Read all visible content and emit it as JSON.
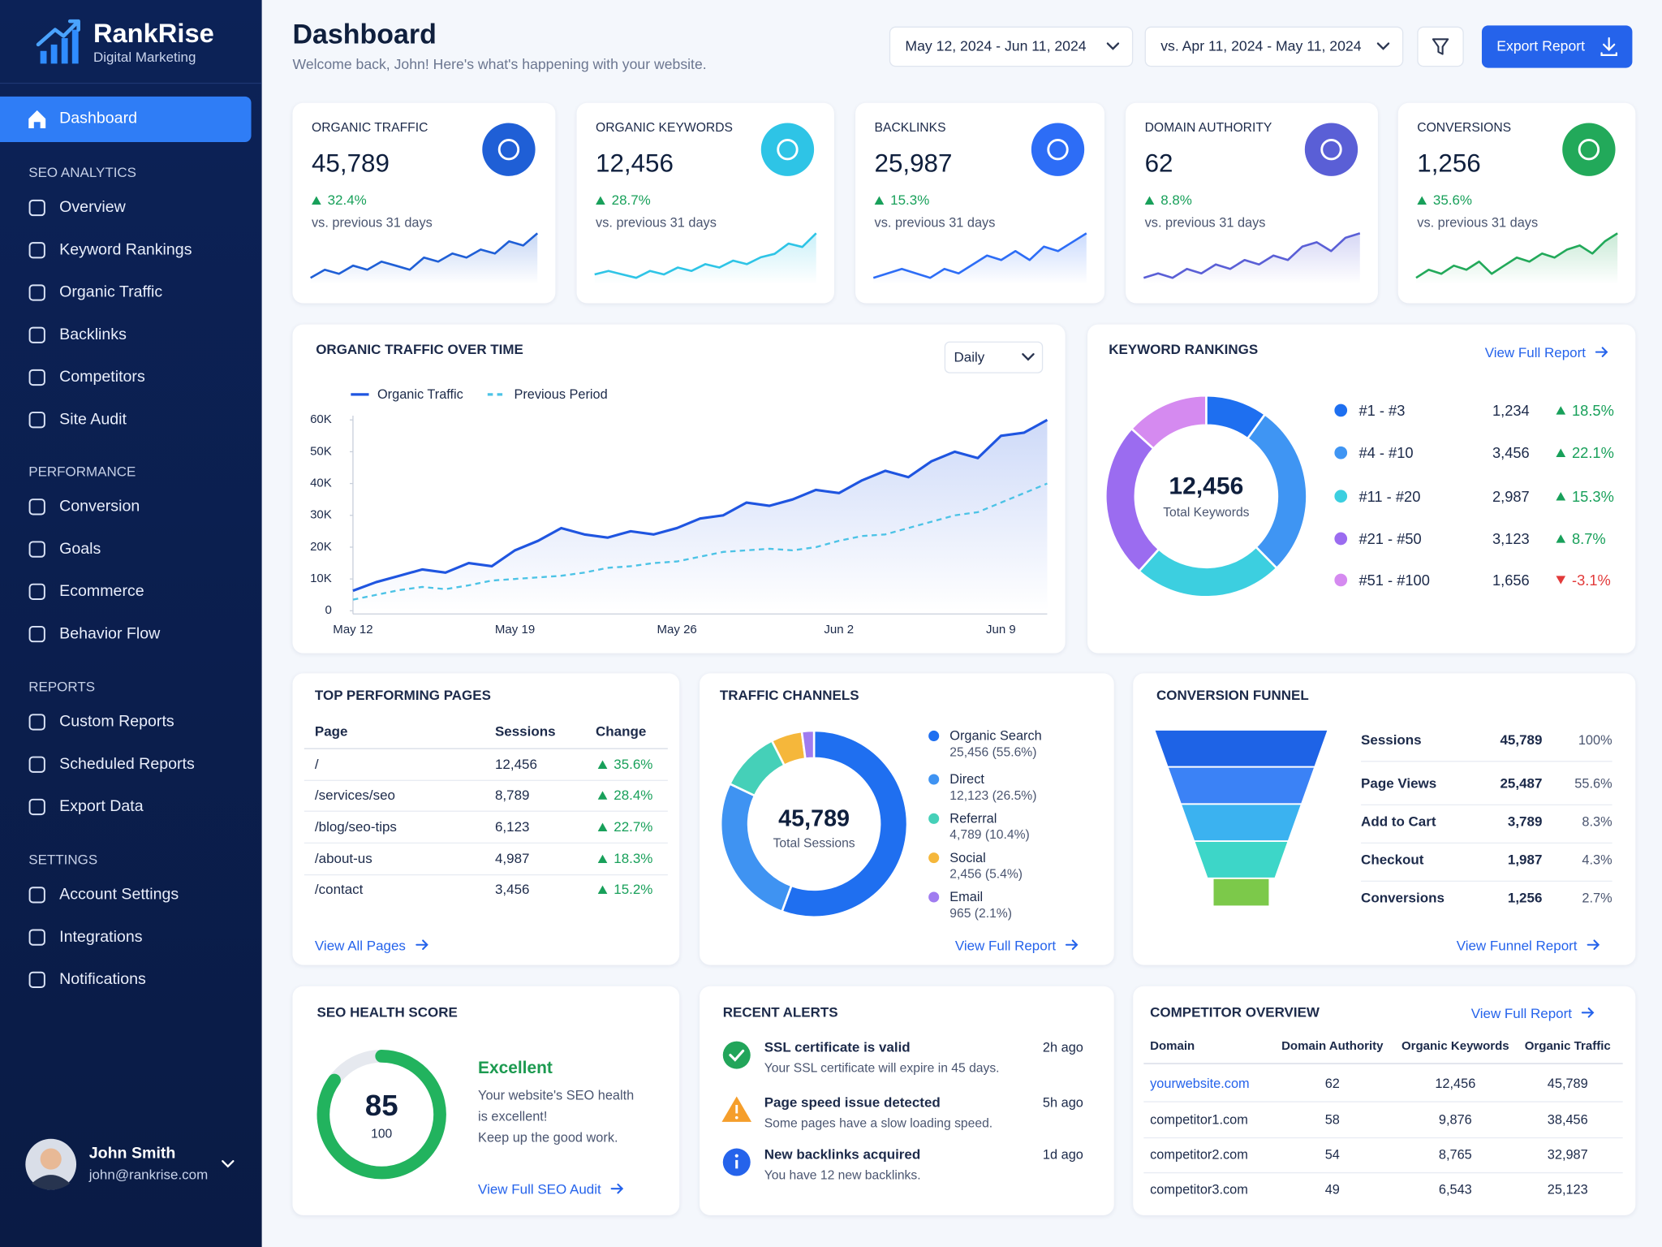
{
  "brand": {
    "name": "RankRise",
    "tagline": "Digital Marketing"
  },
  "nav": {
    "active": "Dashboard",
    "sections": [
      {
        "title": "SEO ANALYTICS",
        "items": [
          "Overview",
          "Keyword Rankings",
          "Organic Traffic",
          "Backlinks",
          "Competitors",
          "Site Audit"
        ]
      },
      {
        "title": "PERFORMANCE",
        "items": [
          "Conversion",
          "Goals",
          "Ecommerce",
          "Behavior Flow"
        ]
      },
      {
        "title": "REPORTS",
        "items": [
          "Custom Reports",
          "Scheduled Reports",
          "Export Data"
        ]
      },
      {
        "title": "SETTINGS",
        "items": [
          "Account Settings",
          "Integrations",
          "Notifications"
        ]
      }
    ]
  },
  "user": {
    "name": "John Smith",
    "email": "john@rankrise.com"
  },
  "header": {
    "title": "Dashboard",
    "subtitle": "Welcome back, John! Here's what's happening with your website.",
    "date_range": "May 12, 2024 - Jun 11, 2024",
    "compare_range": "vs. Apr 11, 2024 - May 11, 2024",
    "export": "Export Report"
  },
  "kpis": [
    {
      "label": "ORGANIC TRAFFIC",
      "value": "45,789",
      "change": "32.4%",
      "note": "vs. previous 31 days",
      "color": "#1f5fd6",
      "trend": [
        3,
        5,
        4,
        6,
        5,
        7,
        6,
        5,
        8,
        7,
        9,
        8,
        10,
        9,
        12,
        11,
        14
      ]
    },
    {
      "label": "ORGANIC KEYWORDS",
      "value": "12,456",
      "change": "28.7%",
      "note": "vs. previous 31 days",
      "color": "#2ec4e6",
      "trend": [
        5,
        6,
        5,
        4,
        6,
        5,
        7,
        6,
        8,
        7,
        9,
        8,
        10,
        11,
        14,
        13,
        17
      ]
    },
    {
      "label": "BACKLINKS",
      "value": "25,987",
      "change": "15.3%",
      "note": "vs. previous 31 days",
      "color": "#2d6df6",
      "trend": [
        4,
        5,
        6,
        5,
        4,
        6,
        5,
        7,
        9,
        8,
        10,
        8,
        11,
        10,
        12,
        14
      ]
    },
    {
      "label": "DOMAIN AUTHORITY",
      "value": "62",
      "change": "8.8%",
      "note": "vs. previous 31 days",
      "color": "#5a5fd6",
      "trend": [
        3,
        4,
        3,
        5,
        4,
        6,
        5,
        7,
        6,
        8,
        7,
        10,
        11,
        9,
        12,
        13
      ]
    },
    {
      "label": "CONVERSIONS",
      "value": "1,256",
      "change": "35.6%",
      "note": "vs. previous 31 days",
      "color": "#22a95a",
      "trend": [
        4,
        6,
        5,
        7,
        6,
        8,
        5,
        7,
        9,
        8,
        10,
        9,
        11,
        12,
        10,
        13,
        15
      ]
    }
  ],
  "traffic_chart": {
    "type": "line",
    "title": "ORGANIC TRAFFIC OVER TIME",
    "period": "Daily",
    "categories": [
      "May 12",
      null,
      null,
      null,
      null,
      null,
      null,
      "May 19",
      null,
      null,
      null,
      null,
      null,
      null,
      "May 26",
      null,
      null,
      null,
      null,
      null,
      null,
      "Jun 2",
      null,
      null,
      null,
      null,
      null,
      null,
      "Jun 9",
      null,
      null
    ],
    "ylim": [
      0,
      60000
    ],
    "yticks": [
      0,
      {
        "value": 10000,
        "label": "10K"
      },
      {
        "value": 20000,
        "label": "20K"
      },
      {
        "value": 30000,
        "label": "30K"
      },
      {
        "value": 40000,
        "label": "40K"
      },
      {
        "value": 50000,
        "label": "50K"
      },
      {
        "value": 60000,
        "label": "60K"
      }
    ],
    "grid": false,
    "series": [
      {
        "name": "Organic Traffic",
        "color": "#1f55e0",
        "values": [
          6300,
          9000,
          11000,
          13000,
          12000,
          15000,
          14000,
          19000,
          22000,
          26000,
          24000,
          23000,
          25000,
          24000,
          26000,
          29000,
          30000,
          34000,
          33000,
          35000,
          38000,
          37000,
          41000,
          44000,
          42000,
          47000,
          50000,
          48000,
          55000,
          56000,
          60000
        ]
      },
      {
        "name": "Previous Period",
        "color": "#4cc3e6",
        "dashed": true,
        "values": [
          3500,
          5000,
          6500,
          7500,
          6800,
          8000,
          9500,
          10000,
          10500,
          11000,
          12000,
          13500,
          14000,
          15000,
          15500,
          17000,
          18500,
          19000,
          19500,
          19000,
          20000,
          22000,
          23500,
          24000,
          26000,
          28000,
          30000,
          31000,
          34000,
          37000,
          40000
        ]
      }
    ]
  },
  "keyword_rankings": {
    "type": "pie",
    "title": "KEYWORD RANKINGS",
    "link": "View Full Report",
    "total": "12,456",
    "total_label": "Total Keywords",
    "categories": [
      "#1 - #3",
      "#4 - #10",
      "#11 - #20",
      "#21 - #50",
      "#51 - #100"
    ],
    "values": [
      1234,
      3456,
      2987,
      3123,
      1656
    ],
    "value_labels": [
      "1,234",
      "3,456",
      "2,987",
      "3,123",
      "1,656"
    ],
    "changes": [
      "18.5%",
      "22.1%",
      "15.3%",
      "8.7%",
      "-3.1%"
    ],
    "colors": [
      "#1e6ff0",
      "#3f95f3",
      "#3ccfe0",
      "#9b6cf0",
      "#d58af0"
    ]
  },
  "top_pages": {
    "title": "TOP PERFORMING PAGES",
    "columns": [
      "Page",
      "Sessions",
      "Change"
    ],
    "rows": [
      [
        "/",
        "12,456",
        "35.6%"
      ],
      [
        "/services/seo",
        "8,789",
        "28.4%"
      ],
      [
        "/blog/seo-tips",
        "6,123",
        "22.7%"
      ],
      [
        "/about-us",
        "4,987",
        "18.3%"
      ],
      [
        "/contact",
        "3,456",
        "15.2%"
      ]
    ],
    "link": "View All Pages"
  },
  "traffic_channels": {
    "type": "pie",
    "title": "TRAFFIC CHANNELS",
    "total": "45,789",
    "total_label": "Total Sessions",
    "categories": [
      "Organic Search",
      "Direct",
      "Referral",
      "Social",
      "Email"
    ],
    "values": [
      25456,
      12123,
      4789,
      2456,
      965
    ],
    "value_labels": [
      "25,456 (55.6%)",
      "12,123 (26.5%)",
      "4,789 (10.4%)",
      "2,456 (5.4%)",
      "965 (2.1%)"
    ],
    "colors": [
      "#1f6ff0",
      "#3f93f2",
      "#45d0b8",
      "#f5b73b",
      "#a07cf0"
    ],
    "link": "View Full Report"
  },
  "conversion_funnel": {
    "title": "CONVERSION FUNNEL",
    "rows": [
      {
        "stage": "Sessions",
        "value": "45,789",
        "share": "100%"
      },
      {
        "stage": "Page Views",
        "value": "25,487",
        "share": "55.6%"
      },
      {
        "stage": "Add to Cart",
        "value": "3,789",
        "share": "8.3%"
      },
      {
        "stage": "Checkout",
        "value": "1,987",
        "share": "4.3%"
      },
      {
        "stage": "Conversions",
        "value": "1,256",
        "share": "2.7%"
      }
    ],
    "colors": [
      "#1e63e6",
      "#3b82f6",
      "#3bb2f0",
      "#3dd6c8",
      "#7cc94a"
    ],
    "link": "View Funnel Report"
  },
  "seo_health": {
    "title": "SEO HEALTH SCORE",
    "score": 85,
    "max": 100,
    "status": "Excellent",
    "message": [
      "Your website's SEO health",
      "is excellent!",
      "Keep up the good work."
    ],
    "link": "View Full SEO Audit"
  },
  "alerts": {
    "title": "RECENT ALERTS",
    "items": [
      {
        "title": "SSL certificate is valid",
        "text": "Your SSL certificate will expire in 45 days.",
        "time": "2h ago"
      },
      {
        "title": "Page speed issue detected",
        "text": "Some pages have a slow loading speed.",
        "time": "5h ago"
      },
      {
        "title": "New backlinks acquired",
        "text": "You have 12 new backlinks.",
        "time": "1d ago"
      }
    ]
  },
  "competitors": {
    "title": "COMPETITOR OVERVIEW",
    "link": "View Full Report",
    "columns": [
      "Domain",
      "Domain Authority",
      "Organic Keywords",
      "Organic Traffic"
    ],
    "rows": [
      [
        "yourwebsite.com",
        "62",
        "12,456",
        "45,789"
      ],
      [
        "competitor1.com",
        "58",
        "9,876",
        "38,456"
      ],
      [
        "competitor2.com",
        "54",
        "8,765",
        "32,987"
      ],
      [
        "competitor3.com",
        "49",
        "6,543",
        "25,123"
      ]
    ]
  }
}
